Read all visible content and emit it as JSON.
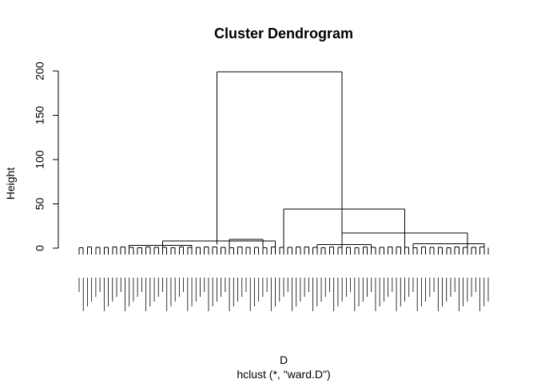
{
  "chart_data": {
    "type": "dendrogram",
    "title": "Cluster Dendrogram",
    "xlabel": "D",
    "subtitle": "hclust (*, \"ward.D\")",
    "ylabel": "Height",
    "ylim": [
      0,
      200
    ],
    "yticks": [
      "0",
      "50",
      "100",
      "150",
      "200"
    ],
    "leaf_count": 99,
    "leaf_height": -7,
    "merges": [
      {
        "name": "root",
        "height": 199,
        "left_center": 33,
        "right_center": 63
      },
      {
        "name": "right-main",
        "height": 44,
        "left_center": 49,
        "right_center": 78
      },
      {
        "name": "left-main",
        "height": 8,
        "left_center": 20,
        "right_center": 47
      },
      {
        "name": "middle",
        "height": 10,
        "left_center": 36,
        "right_center": 44
      },
      {
        "name": "far-right",
        "height": 17,
        "left_center": 63,
        "right_center": 93
      },
      {
        "name": "far-right-a",
        "height": 4,
        "left_center": 57,
        "right_center": 70
      },
      {
        "name": "far-right-b",
        "height": 5,
        "left_center": 80,
        "right_center": 97
      },
      {
        "name": "left-sub",
        "height": 3,
        "left_center": 12,
        "right_center": 27
      }
    ]
  },
  "colors": {
    "line": "#000000",
    "background": "#ffffff"
  }
}
